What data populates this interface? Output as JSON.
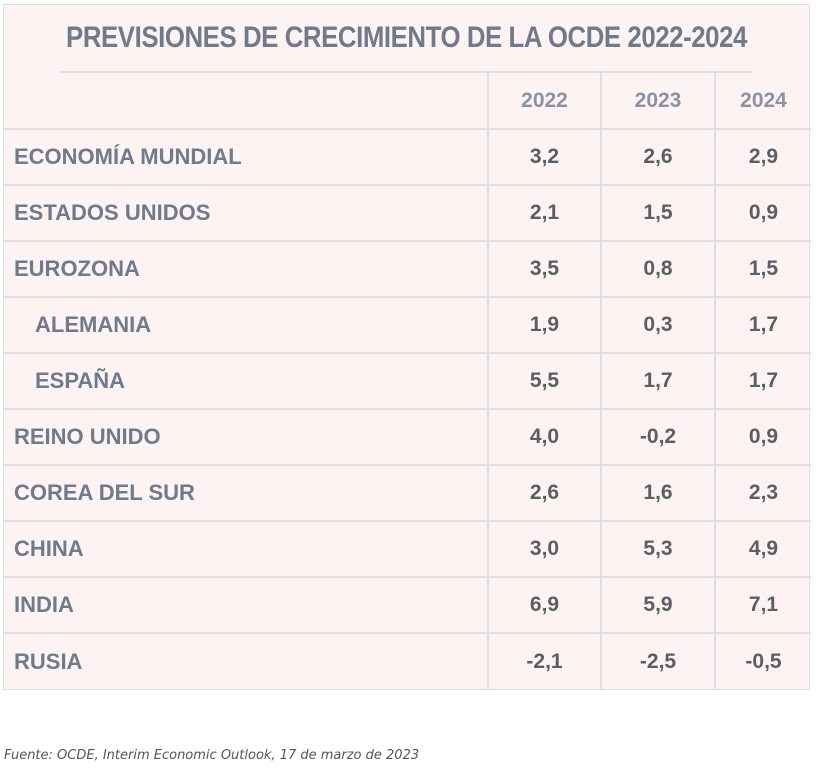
{
  "chart_data": {
    "type": "table",
    "title": "PREVISIONES DE CRECIMIENTO DE LA OCDE 2022-2024",
    "columns": [
      "2022",
      "2023",
      "2024"
    ],
    "rows": [
      {
        "label": "ECONOMÍA MUNDIAL",
        "indent": false,
        "values": [
          "3,2",
          "2,6",
          "2,9"
        ]
      },
      {
        "label": "ESTADOS UNIDOS",
        "indent": false,
        "values": [
          "2,1",
          "1,5",
          "0,9"
        ]
      },
      {
        "label": "EUROZONA",
        "indent": false,
        "values": [
          "3,5",
          "0,8",
          "1,5"
        ]
      },
      {
        "label": "ALEMANIA",
        "indent": true,
        "values": [
          "1,9",
          "0,3",
          "1,7"
        ]
      },
      {
        "label": "ESPAÑA",
        "indent": true,
        "values": [
          "5,5",
          "1,7",
          "1,7"
        ]
      },
      {
        "label": "REINO UNIDO",
        "indent": false,
        "values": [
          "4,0",
          "-0,2",
          "0,9"
        ]
      },
      {
        "label": "COREA DEL SUR",
        "indent": false,
        "values": [
          "2,6",
          "1,6",
          "2,3"
        ]
      },
      {
        "label": "CHINA",
        "indent": false,
        "values": [
          "3,0",
          "5,3",
          "4,9"
        ]
      },
      {
        "label": "INDIA",
        "indent": false,
        "values": [
          "6,9",
          "5,9",
          "7,1"
        ]
      },
      {
        "label": "RUSIA",
        "indent": false,
        "values": [
          "-2,1",
          "-2,5",
          "-0,5"
        ]
      }
    ],
    "source": "Fuente: OCDE, Interim Economic Outlook, 17 de marzo de 2023"
  }
}
